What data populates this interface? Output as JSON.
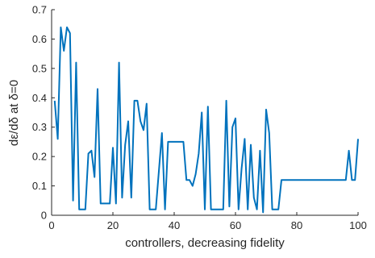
{
  "chart_data": {
    "type": "line",
    "xlabel": "controllers, decreasing fidelity",
    "ylabel": "dε/dδ at δ=0",
    "xlim": [
      0,
      100
    ],
    "ylim": [
      0,
      0.7
    ],
    "xticks": [
      0,
      20,
      40,
      60,
      80,
      100
    ],
    "yticks": [
      0,
      0.1,
      0.2,
      0.3,
      0.4,
      0.5,
      0.6,
      0.7
    ],
    "grid": false,
    "legend": "none",
    "colors": {
      "line": "#0072BD",
      "axis": "#262626"
    },
    "series": [
      {
        "x": [
          1,
          2,
          3,
          4,
          5,
          6,
          7,
          8,
          9,
          10,
          11,
          12,
          13,
          14,
          15,
          16,
          17,
          18,
          19,
          20,
          21,
          22,
          23,
          24,
          25,
          26,
          27,
          28,
          29,
          30,
          31,
          32,
          33,
          34,
          35,
          36,
          37,
          38,
          39,
          40,
          41,
          42,
          43,
          44,
          45,
          46,
          47,
          48,
          49,
          50,
          51,
          52,
          53,
          54,
          55,
          56,
          57,
          58,
          59,
          60,
          61,
          62,
          63,
          64,
          65,
          66,
          67,
          68,
          69,
          70,
          71,
          72,
          73,
          74,
          75,
          76,
          77,
          78,
          79,
          80,
          81,
          82,
          83,
          84,
          85,
          86,
          87,
          88,
          89,
          90,
          91,
          92,
          93,
          94,
          95,
          96,
          97,
          98,
          99,
          100
        ],
        "y": [
          0.39,
          0.26,
          0.64,
          0.56,
          0.64,
          0.62,
          0.05,
          0.52,
          0.02,
          0.02,
          0.02,
          0.21,
          0.22,
          0.13,
          0.43,
          0.04,
          0.04,
          0.04,
          0.04,
          0.23,
          0.04,
          0.52,
          0.06,
          0.24,
          0.32,
          0.06,
          0.39,
          0.39,
          0.32,
          0.29,
          0.38,
          0.02,
          0.02,
          0.02,
          0.15,
          0.28,
          0.02,
          0.25,
          0.25,
          0.25,
          0.25,
          0.25,
          0.25,
          0.12,
          0.12,
          0.1,
          0.14,
          0.21,
          0.35,
          0.02,
          0.37,
          0.02,
          0.02,
          0.02,
          0.02,
          0.02,
          0.39,
          0.03,
          0.3,
          0.33,
          0.02,
          0.16,
          0.26,
          0.02,
          0.24,
          0.06,
          0.02,
          0.22,
          0.01,
          0.36,
          0.28,
          0.02,
          0.02,
          0.02,
          0.12,
          0.12,
          0.12,
          0.12,
          0.12,
          0.12,
          0.12,
          0.12,
          0.12,
          0.12,
          0.12,
          0.12,
          0.12,
          0.12,
          0.12,
          0.12,
          0.12,
          0.12,
          0.12,
          0.12,
          0.12,
          0.12,
          0.22,
          0.12,
          0.12,
          0.26
        ]
      }
    ]
  }
}
